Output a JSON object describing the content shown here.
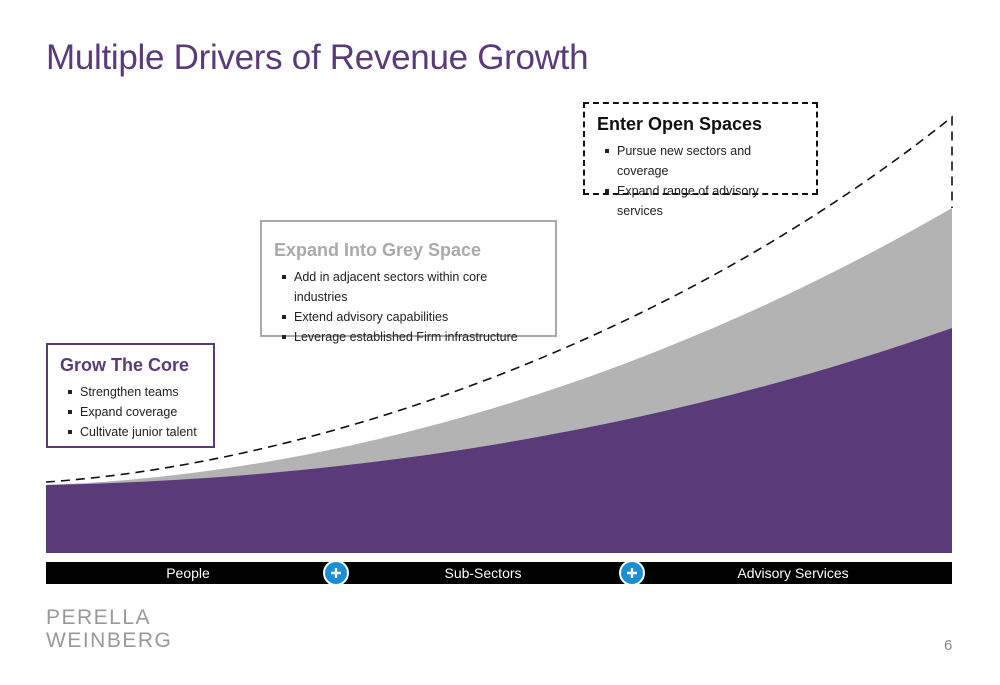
{
  "title": "Multiple Drivers of Revenue Growth",
  "boxes": [
    {
      "heading": "Grow The Core",
      "bullets": [
        "Strengthen teams",
        "Expand coverage",
        "Cultivate junior talent"
      ]
    },
    {
      "heading": "Expand Into Grey Space",
      "bullets": [
        "Add in adjacent sectors within core industries",
        "Extend advisory capabilities",
        "Leverage established Firm infrastructure"
      ]
    },
    {
      "heading": "Enter Open Spaces",
      "bullets": [
        "Pursue new sectors and coverage",
        "Expand range of advisory services"
      ]
    }
  ],
  "bar": {
    "labels": [
      "People",
      "Sub-Sectors",
      "Advisory Services"
    ]
  },
  "logo": {
    "lines": [
      "PERELLA",
      "WEINBERG"
    ]
  },
  "page_number": 6
}
